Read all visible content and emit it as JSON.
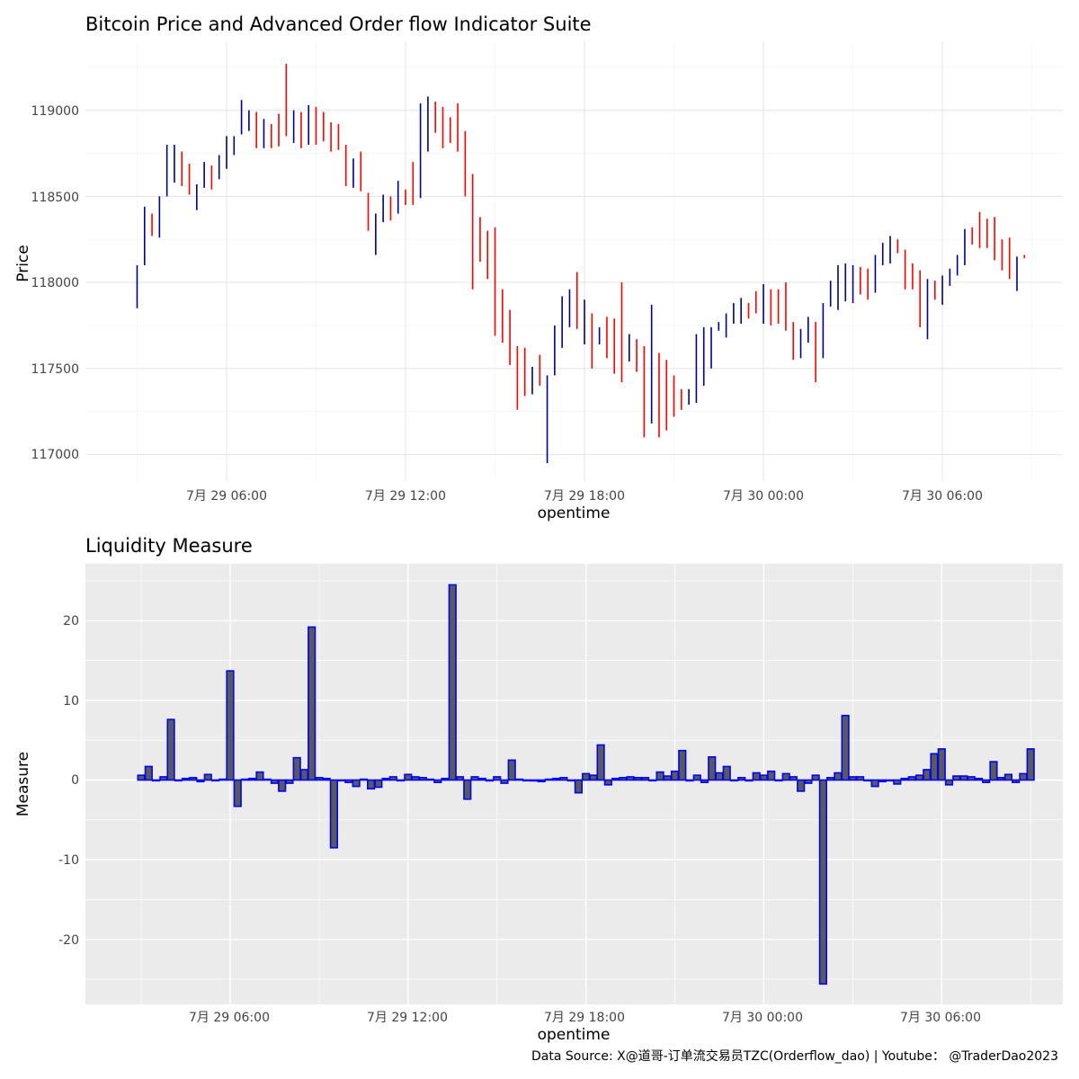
{
  "price_panel": {
    "title": "Bitcoin Price and Advanced Order flow Indicator Suite",
    "xlabel": "opentime",
    "ylabel": "Price",
    "x_ticks": [
      "7月 29 06:00",
      "7月 29 12:00",
      "7月 29 18:00",
      "7月 30 00:00",
      "7月 30 06:00"
    ],
    "y_ticks": [
      "117000",
      "117500",
      "118000",
      "118500",
      "119000"
    ]
  },
  "liquidity_panel": {
    "title": "Liquidity Measure",
    "xlabel": "opentime",
    "ylabel": "Measure",
    "x_ticks": [
      "7月 29 06:00",
      "7月 29 12:00",
      "7月 29 18:00",
      "7月 30 00:00",
      "7月 30 06:00"
    ],
    "y_ticks": [
      "-20",
      "-10",
      "0",
      "10",
      "20"
    ]
  },
  "credit": "Data Source: X@道哥-订单流交易员TZC(Orderflow_dao) | Youtube： @TraderDao2023",
  "colors": {
    "up": "#00008b",
    "down": "#ff0000",
    "bar_fill": "#5a5a5a",
    "bar_outline": "#0000ff",
    "panel_bg_bottom": "#ebebeb"
  },
  "chart_data": [
    {
      "type": "ohlc",
      "title": "Bitcoin Price and Advanced Order flow Indicator Suite",
      "xlabel": "opentime",
      "ylabel": "Price",
      "x_unit": "hours since 7月 29 00:00",
      "x_start": 3.0,
      "x_step": 0.25,
      "ylim": [
        116900,
        119320
      ],
      "candles": [
        {
          "high": 118100,
          "low": 117850,
          "dir": "up"
        },
        {
          "high": 118440,
          "low": 118100,
          "dir": "up"
        },
        {
          "high": 118400,
          "low": 118270,
          "dir": "down"
        },
        {
          "high": 118500,
          "low": 118260,
          "dir": "up"
        },
        {
          "high": 118800,
          "low": 118500,
          "dir": "up"
        },
        {
          "high": 118800,
          "low": 118580,
          "dir": "up"
        },
        {
          "high": 118760,
          "low": 118560,
          "dir": "down"
        },
        {
          "high": 118690,
          "low": 118510,
          "dir": "down"
        },
        {
          "high": 118570,
          "low": 118420,
          "dir": "up"
        },
        {
          "high": 118700,
          "low": 118550,
          "dir": "up"
        },
        {
          "high": 118680,
          "low": 118540,
          "dir": "down"
        },
        {
          "high": 118740,
          "low": 118600,
          "dir": "up"
        },
        {
          "high": 118850,
          "low": 118660,
          "dir": "up"
        },
        {
          "high": 118850,
          "low": 118740,
          "dir": "up"
        },
        {
          "high": 119060,
          "low": 118860,
          "dir": "up"
        },
        {
          "high": 119000,
          "low": 118880,
          "dir": "up"
        },
        {
          "high": 118990,
          "low": 118780,
          "dir": "down"
        },
        {
          "high": 118950,
          "low": 118780,
          "dir": "up"
        },
        {
          "high": 118920,
          "low": 118780,
          "dir": "down"
        },
        {
          "high": 118980,
          "low": 118790,
          "dir": "down"
        },
        {
          "high": 119270,
          "low": 118850,
          "dir": "down"
        },
        {
          "high": 119000,
          "low": 118810,
          "dir": "up"
        },
        {
          "high": 118990,
          "low": 118780,
          "dir": "down"
        },
        {
          "high": 119030,
          "low": 118800,
          "dir": "up"
        },
        {
          "high": 119020,
          "low": 118800,
          "dir": "down"
        },
        {
          "high": 118990,
          "low": 118820,
          "dir": "down"
        },
        {
          "high": 118930,
          "low": 118760,
          "dir": "down"
        },
        {
          "high": 118920,
          "low": 118770,
          "dir": "down"
        },
        {
          "high": 118800,
          "low": 118560,
          "dir": "down"
        },
        {
          "high": 118720,
          "low": 118550,
          "dir": "up"
        },
        {
          "high": 118760,
          "low": 118530,
          "dir": "down"
        },
        {
          "high": 118520,
          "low": 118300,
          "dir": "down"
        },
        {
          "high": 118400,
          "low": 118160,
          "dir": "up"
        },
        {
          "high": 118510,
          "low": 118350,
          "dir": "up"
        },
        {
          "high": 118500,
          "low": 118360,
          "dir": "down"
        },
        {
          "high": 118590,
          "low": 118400,
          "dir": "up"
        },
        {
          "high": 118540,
          "low": 118450,
          "dir": "down"
        },
        {
          "high": 118700,
          "low": 118450,
          "dir": "down"
        },
        {
          "high": 119040,
          "low": 118490,
          "dir": "up"
        },
        {
          "high": 119080,
          "low": 118760,
          "dir": "up"
        },
        {
          "high": 119050,
          "low": 118870,
          "dir": "down"
        },
        {
          "high": 119020,
          "low": 118780,
          "dir": "down"
        },
        {
          "high": 118960,
          "low": 118810,
          "dir": "down"
        },
        {
          "high": 119040,
          "low": 118760,
          "dir": "down"
        },
        {
          "high": 118880,
          "low": 118500,
          "dir": "down"
        },
        {
          "high": 118630,
          "low": 117960,
          "dir": "down"
        },
        {
          "high": 118380,
          "low": 118120,
          "dir": "down"
        },
        {
          "high": 118300,
          "low": 118020,
          "dir": "down"
        },
        {
          "high": 118320,
          "low": 117690,
          "dir": "down"
        },
        {
          "high": 117960,
          "low": 117650,
          "dir": "down"
        },
        {
          "high": 117840,
          "low": 117520,
          "dir": "down"
        },
        {
          "high": 117630,
          "low": 117260,
          "dir": "down"
        },
        {
          "high": 117620,
          "low": 117340,
          "dir": "down"
        },
        {
          "high": 117510,
          "low": 117350,
          "dir": "up"
        },
        {
          "high": 117580,
          "low": 117400,
          "dir": "down"
        },
        {
          "high": 117460,
          "low": 116950,
          "dir": "up"
        },
        {
          "high": 117750,
          "low": 117460,
          "dir": "up"
        },
        {
          "high": 117920,
          "low": 117620,
          "dir": "up"
        },
        {
          "high": 117960,
          "low": 117740,
          "dir": "up"
        },
        {
          "high": 118060,
          "low": 117730,
          "dir": "down"
        },
        {
          "high": 117900,
          "low": 117640,
          "dir": "up"
        },
        {
          "high": 117820,
          "low": 117500,
          "dir": "down"
        },
        {
          "high": 117740,
          "low": 117640,
          "dir": "up"
        },
        {
          "high": 117800,
          "low": 117560,
          "dir": "down"
        },
        {
          "high": 117790,
          "low": 117470,
          "dir": "down"
        },
        {
          "high": 118000,
          "low": 117420,
          "dir": "down"
        },
        {
          "high": 117700,
          "low": 117540,
          "dir": "up"
        },
        {
          "high": 117670,
          "low": 117480,
          "dir": "down"
        },
        {
          "high": 117630,
          "low": 117100,
          "dir": "down"
        },
        {
          "high": 117870,
          "low": 117180,
          "dir": "up"
        },
        {
          "high": 117590,
          "low": 117100,
          "dir": "down"
        },
        {
          "high": 117550,
          "low": 117140,
          "dir": "down"
        },
        {
          "high": 117460,
          "low": 117220,
          "dir": "down"
        },
        {
          "high": 117380,
          "low": 117260,
          "dir": "down"
        },
        {
          "high": 117380,
          "low": 117290,
          "dir": "up"
        },
        {
          "high": 117700,
          "low": 117300,
          "dir": "up"
        },
        {
          "high": 117740,
          "low": 117400,
          "dir": "up"
        },
        {
          "high": 117740,
          "low": 117500,
          "dir": "up"
        },
        {
          "high": 117770,
          "low": 117720,
          "dir": "up"
        },
        {
          "high": 117820,
          "low": 117680,
          "dir": "up"
        },
        {
          "high": 117880,
          "low": 117760,
          "dir": "up"
        },
        {
          "high": 117910,
          "low": 117760,
          "dir": "up"
        },
        {
          "high": 117880,
          "low": 117790,
          "dir": "down"
        },
        {
          "high": 117950,
          "low": 117820,
          "dir": "down"
        },
        {
          "high": 117990,
          "low": 117760,
          "dir": "up"
        },
        {
          "high": 117960,
          "low": 117750,
          "dir": "down"
        },
        {
          "high": 117960,
          "low": 117760,
          "dir": "down"
        },
        {
          "high": 118000,
          "low": 117720,
          "dir": "down"
        },
        {
          "high": 117770,
          "low": 117550,
          "dir": "down"
        },
        {
          "high": 117730,
          "low": 117560,
          "dir": "up"
        },
        {
          "high": 117800,
          "low": 117650,
          "dir": "up"
        },
        {
          "high": 117770,
          "low": 117420,
          "dir": "down"
        },
        {
          "high": 117880,
          "low": 117560,
          "dir": "up"
        },
        {
          "high": 118010,
          "low": 117860,
          "dir": "up"
        },
        {
          "high": 118100,
          "low": 117840,
          "dir": "up"
        },
        {
          "high": 118110,
          "low": 117890,
          "dir": "up"
        },
        {
          "high": 118100,
          "low": 117880,
          "dir": "up"
        },
        {
          "high": 118090,
          "low": 117930,
          "dir": "down"
        },
        {
          "high": 118080,
          "low": 117900,
          "dir": "down"
        },
        {
          "high": 118160,
          "low": 117940,
          "dir": "up"
        },
        {
          "high": 118230,
          "low": 118100,
          "dir": "up"
        },
        {
          "high": 118270,
          "low": 118110,
          "dir": "up"
        },
        {
          "high": 118250,
          "low": 118170,
          "dir": "down"
        },
        {
          "high": 118190,
          "low": 117960,
          "dir": "down"
        },
        {
          "high": 118110,
          "low": 117960,
          "dir": "down"
        },
        {
          "high": 118070,
          "low": 117740,
          "dir": "down"
        },
        {
          "high": 118020,
          "low": 117670,
          "dir": "up"
        },
        {
          "high": 118010,
          "low": 117900,
          "dir": "down"
        },
        {
          "high": 118040,
          "low": 117870,
          "dir": "up"
        },
        {
          "high": 118080,
          "low": 117980,
          "dir": "up"
        },
        {
          "high": 118160,
          "low": 118040,
          "dir": "up"
        },
        {
          "high": 118310,
          "low": 118100,
          "dir": "up"
        },
        {
          "high": 118320,
          "low": 118220,
          "dir": "down"
        },
        {
          "high": 118410,
          "low": 118200,
          "dir": "down"
        },
        {
          "high": 118370,
          "low": 118200,
          "dir": "down"
        },
        {
          "high": 118380,
          "low": 118130,
          "dir": "down"
        },
        {
          "high": 118250,
          "low": 118070,
          "dir": "down"
        },
        {
          "high": 118260,
          "low": 118020,
          "dir": "down"
        },
        {
          "high": 118150,
          "low": 117950,
          "dir": "up"
        },
        {
          "high": 118160,
          "low": 118140,
          "dir": "down"
        }
      ]
    },
    {
      "type": "bar",
      "title": "Liquidity Measure",
      "xlabel": "opentime",
      "ylabel": "Measure",
      "x_unit": "hours since 7月 29 00:00",
      "x_start": 3.0,
      "x_step": 0.25,
      "ylim": [
        -27,
        26
      ],
      "values": [
        0.6,
        1.7,
        0.0,
        0.4,
        7.6,
        0.0,
        0.2,
        0.3,
        -0.2,
        0.7,
        0.0,
        0.1,
        13.7,
        -3.3,
        0.1,
        0.2,
        1.0,
        0.1,
        -0.4,
        -1.4,
        -0.4,
        2.8,
        1.3,
        19.2,
        0.3,
        0.2,
        -8.5,
        0.0,
        -0.3,
        -0.8,
        0.1,
        -1.1,
        -0.9,
        0.2,
        0.4,
        0.0,
        0.7,
        0.4,
        0.3,
        0.1,
        -0.3,
        0.2,
        24.5,
        0.4,
        -2.4,
        0.4,
        0.2,
        -0.1,
        0.4,
        -0.4,
        2.5,
        0.1,
        0.0,
        -0.1,
        -0.2,
        0.1,
        0.2,
        0.3,
        0.0,
        -1.6,
        0.8,
        0.6,
        4.4,
        -0.6,
        0.2,
        0.3,
        0.4,
        0.3,
        0.3,
        0.0,
        1.0,
        0.5,
        1.1,
        3.7,
        -0.1,
        0.6,
        -0.3,
        2.9,
        0.9,
        1.7,
        0.0,
        0.3,
        -0.1,
        0.9,
        0.6,
        1.1,
        0.0,
        0.8,
        0.4,
        -1.4,
        -0.4,
        0.6,
        -25.6,
        0.3,
        0.9,
        8.1,
        0.4,
        0.4,
        0.0,
        -0.8,
        -0.2,
        0.0,
        -0.5,
        0.2,
        0.4,
        0.6,
        1.3,
        3.3,
        3.9,
        -0.6,
        0.5,
        0.5,
        0.4,
        0.2,
        -0.3,
        2.3,
        0.3,
        0.7,
        -0.3,
        0.8,
        3.9
      ]
    }
  ]
}
